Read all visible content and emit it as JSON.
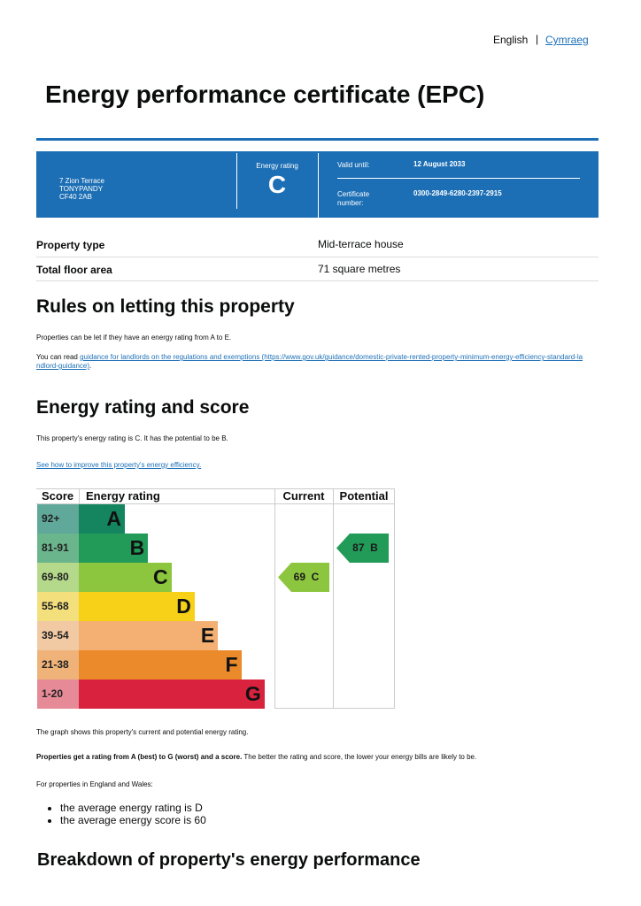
{
  "language": {
    "current": "English",
    "separator": "|",
    "other": "Cymraeg"
  },
  "title": "Energy performance certificate (EPC)",
  "summary": {
    "address": [
      "7 Zion Terrace",
      "TONYPANDY",
      "CF40 2AB"
    ],
    "rating_label": "Energy rating",
    "rating": "C",
    "valid_label": "Valid until:",
    "valid_until": "12 August 2033",
    "certificate_label": [
      "Certificate",
      "number:"
    ],
    "certificate_number": "0300-2849-6280-2397-2915"
  },
  "property": [
    {
      "label": "Property type",
      "value": "Mid-terrace house"
    },
    {
      "label": "Total floor area",
      "value": "71 square metres"
    }
  ],
  "rules": {
    "heading": "Rules on letting this property",
    "paragraph": "Properties can be let if they have an energy rating from A to E.",
    "link_prefix": "You can read ",
    "link": "guidance for landlords on the regulations and exemptions (https://www.gov.uk/guidance/domestic-private-rented-property-minimum-energy-efficiency-standard-landlord-guidance)",
    "link_suffix": "."
  },
  "rating_section": {
    "heading": "Energy rating and score",
    "paragraph": "This property's energy rating is C. It has the potential to be B.",
    "link": "See how to improve this property's energy efficiency."
  },
  "graph": {
    "headers": [
      "Score",
      "Energy rating",
      "Current",
      "Potential"
    ],
    "bands": [
      {
        "score": "92+",
        "letter": "A",
        "color": "#14855f",
        "tint": "#5fa89a"
      },
      {
        "score": "81-91",
        "letter": "B",
        "color": "#229a58",
        "tint": "#6ab58c"
      },
      {
        "score": "69-80",
        "letter": "C",
        "color": "#8cc63f",
        "tint": "#b4d98a"
      },
      {
        "score": "55-68",
        "letter": "D",
        "color": "#f7d117",
        "tint": "#f3df7c"
      },
      {
        "score": "39-54",
        "letter": "E",
        "color": "#f4b072",
        "tint": "#f1c9a3"
      },
      {
        "score": "21-38",
        "letter": "F",
        "color": "#ea8a2a",
        "tint": "#efb37a"
      },
      {
        "score": "1-20",
        "letter": "G",
        "color": "#d9233e",
        "tint": "#e58a96"
      }
    ],
    "current": {
      "score": 69,
      "letter": "C"
    },
    "potential": {
      "score": 87,
      "letter": "B"
    }
  },
  "notes": {
    "graph_caption": "The graph shows this property's current and potential energy rating.",
    "bold": "Properties get a rating from A (best) to G (worst) and a score.",
    "rest": " The better the rating and score, the lower your energy bills are likely to be.",
    "intro": "For properties in England and Wales:",
    "bullets": [
      "the average energy rating is D",
      "the average energy score is 60"
    ]
  },
  "breakdown_heading": "Breakdown of property's energy performance"
}
